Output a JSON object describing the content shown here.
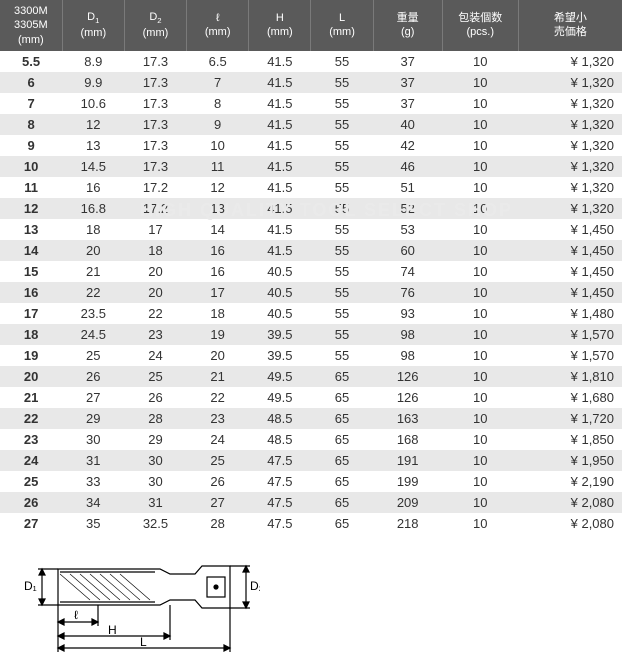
{
  "table": {
    "header_bg": "#5a5a5a",
    "header_fg": "#ffffff",
    "row_even_bg": "#ffffff",
    "row_odd_bg": "#e8e8e8",
    "columns": [
      {
        "key": "size",
        "label_line1": "3300M",
        "label_line2": "3305M",
        "unit": "(mm)"
      },
      {
        "key": "d1",
        "label_line1": "D",
        "sub": "1",
        "unit": "(mm)"
      },
      {
        "key": "d2",
        "label_line1": "D",
        "sub": "2",
        "unit": "(mm)"
      },
      {
        "key": "l",
        "label_line1": "ℓ",
        "unit": "(mm)"
      },
      {
        "key": "h",
        "label_line1": "H",
        "unit": "(mm)"
      },
      {
        "key": "bigL",
        "label_line1": "L",
        "unit": "(mm)"
      },
      {
        "key": "weight",
        "label_line1": "重量",
        "unit": "(g)"
      },
      {
        "key": "pcs",
        "label_line1": "包装個数",
        "unit": "(pcs.)"
      },
      {
        "key": "price",
        "label_line1": "希望小",
        "label_line2": "売価格",
        "unit": ""
      }
    ],
    "rows": [
      {
        "size": "5.5",
        "d1": "8.9",
        "d2": "17.3",
        "l": "6.5",
        "h": "41.5",
        "bigL": "55",
        "weight": "37",
        "pcs": "10",
        "price": "¥ 1,320"
      },
      {
        "size": "6",
        "d1": "9.9",
        "d2": "17.3",
        "l": "7",
        "h": "41.5",
        "bigL": "55",
        "weight": "37",
        "pcs": "10",
        "price": "¥ 1,320"
      },
      {
        "size": "7",
        "d1": "10.6",
        "d2": "17.3",
        "l": "8",
        "h": "41.5",
        "bigL": "55",
        "weight": "37",
        "pcs": "10",
        "price": "¥ 1,320"
      },
      {
        "size": "8",
        "d1": "12",
        "d2": "17.3",
        "l": "9",
        "h": "41.5",
        "bigL": "55",
        "weight": "40",
        "pcs": "10",
        "price": "¥ 1,320"
      },
      {
        "size": "9",
        "d1": "13",
        "d2": "17.3",
        "l": "10",
        "h": "41.5",
        "bigL": "55",
        "weight": "42",
        "pcs": "10",
        "price": "¥ 1,320"
      },
      {
        "size": "10",
        "d1": "14.5",
        "d2": "17.3",
        "l": "11",
        "h": "41.5",
        "bigL": "55",
        "weight": "46",
        "pcs": "10",
        "price": "¥ 1,320"
      },
      {
        "size": "11",
        "d1": "16",
        "d2": "17.2",
        "l": "12",
        "h": "41.5",
        "bigL": "55",
        "weight": "51",
        "pcs": "10",
        "price": "¥ 1,320"
      },
      {
        "size": "12",
        "d1": "16.8",
        "d2": "17.2",
        "l": "13",
        "h": "41.5",
        "bigL": "55",
        "weight": "52",
        "pcs": "10",
        "price": "¥ 1,320"
      },
      {
        "size": "13",
        "d1": "18",
        "d2": "17",
        "l": "14",
        "h": "41.5",
        "bigL": "55",
        "weight": "53",
        "pcs": "10",
        "price": "¥ 1,450"
      },
      {
        "size": "14",
        "d1": "20",
        "d2": "18",
        "l": "16",
        "h": "41.5",
        "bigL": "55",
        "weight": "60",
        "pcs": "10",
        "price": "¥ 1,450"
      },
      {
        "size": "15",
        "d1": "21",
        "d2": "20",
        "l": "16",
        "h": "40.5",
        "bigL": "55",
        "weight": "74",
        "pcs": "10",
        "price": "¥ 1,450"
      },
      {
        "size": "16",
        "d1": "22",
        "d2": "20",
        "l": "17",
        "h": "40.5",
        "bigL": "55",
        "weight": "76",
        "pcs": "10",
        "price": "¥ 1,450"
      },
      {
        "size": "17",
        "d1": "23.5",
        "d2": "22",
        "l": "18",
        "h": "40.5",
        "bigL": "55",
        "weight": "93",
        "pcs": "10",
        "price": "¥ 1,480"
      },
      {
        "size": "18",
        "d1": "24.5",
        "d2": "23",
        "l": "19",
        "h": "39.5",
        "bigL": "55",
        "weight": "98",
        "pcs": "10",
        "price": "¥ 1,570"
      },
      {
        "size": "19",
        "d1": "25",
        "d2": "24",
        "l": "20",
        "h": "39.5",
        "bigL": "55",
        "weight": "98",
        "pcs": "10",
        "price": "¥ 1,570"
      },
      {
        "size": "20",
        "d1": "26",
        "d2": "25",
        "l": "21",
        "h": "49.5",
        "bigL": "65",
        "weight": "126",
        "pcs": "10",
        "price": "¥ 1,810"
      },
      {
        "size": "21",
        "d1": "27",
        "d2": "26",
        "l": "22",
        "h": "49.5",
        "bigL": "65",
        "weight": "126",
        "pcs": "10",
        "price": "¥ 1,680"
      },
      {
        "size": "22",
        "d1": "29",
        "d2": "28",
        "l": "23",
        "h": "48.5",
        "bigL": "65",
        "weight": "163",
        "pcs": "10",
        "price": "¥ 1,720"
      },
      {
        "size": "23",
        "d1": "30",
        "d2": "29",
        "l": "24",
        "h": "48.5",
        "bigL": "65",
        "weight": "168",
        "pcs": "10",
        "price": "¥ 1,850"
      },
      {
        "size": "24",
        "d1": "31",
        "d2": "30",
        "l": "25",
        "h": "47.5",
        "bigL": "65",
        "weight": "191",
        "pcs": "10",
        "price": "¥ 1,950"
      },
      {
        "size": "25",
        "d1": "33",
        "d2": "30",
        "l": "26",
        "h": "47.5",
        "bigL": "65",
        "weight": "199",
        "pcs": "10",
        "price": "¥ 2,190"
      },
      {
        "size": "26",
        "d1": "34",
        "d2": "31",
        "l": "27",
        "h": "47.5",
        "bigL": "65",
        "weight": "209",
        "pcs": "10",
        "price": "¥ 2,080"
      },
      {
        "size": "27",
        "d1": "35",
        "d2": "32.5",
        "l": "28",
        "h": "47.5",
        "bigL": "65",
        "weight": "218",
        "pcs": "10",
        "price": "¥ 2,080"
      }
    ]
  },
  "watermark": "HIGH QUALITY TOOL SELECT SHOP",
  "diagram": {
    "labels": {
      "d1": "D₁",
      "d2": "D₂",
      "l": "ℓ",
      "h": "H",
      "bigL": "L"
    },
    "stroke": "#000000"
  }
}
